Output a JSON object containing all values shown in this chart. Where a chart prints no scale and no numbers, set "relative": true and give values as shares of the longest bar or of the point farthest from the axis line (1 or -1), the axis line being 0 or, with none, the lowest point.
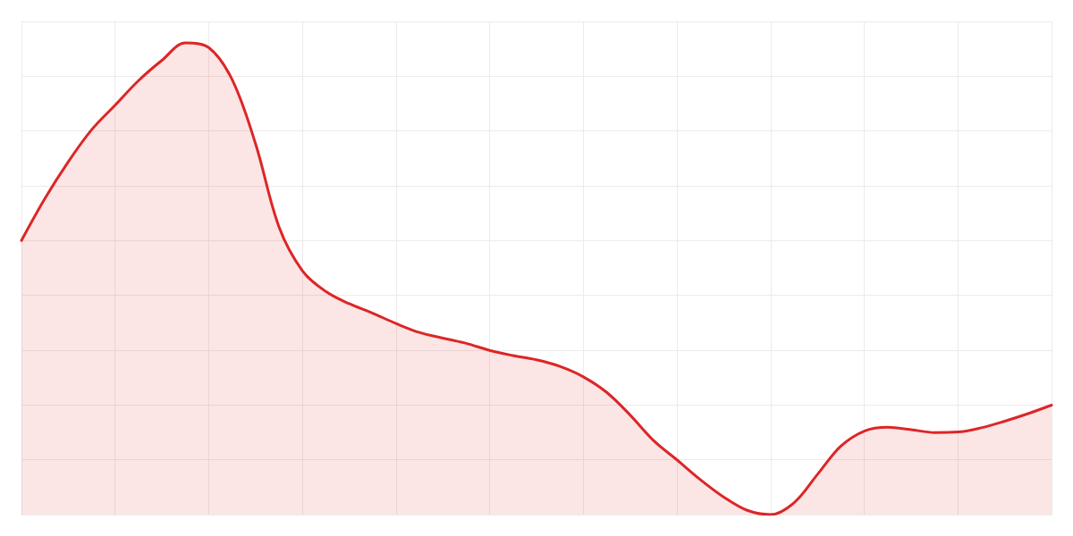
{
  "chart_data": {
    "type": "area",
    "relative": true,
    "grid": true,
    "marker": "none",
    "categories": [
      null,
      null,
      null,
      null,
      null,
      null,
      null,
      null,
      null,
      null,
      null,
      null,
      null,
      null,
      null,
      null,
      null,
      null,
      null,
      null,
      null,
      null,
      null,
      null,
      null,
      null,
      null,
      null,
      null,
      null,
      null,
      null,
      null,
      null,
      null,
      null,
      null,
      null,
      null,
      null,
      null,
      null,
      null,
      null,
      null
    ],
    "series": [
      {
        "color": "#dc2626",
        "values": [
          0.581,
          0.67,
          0.748,
          0.816,
          0.868,
          0.92,
          0.963,
          1,
          0.99,
          0.922,
          0.786,
          0.61,
          0.517,
          0.473,
          0.447,
          0.427,
          0.405,
          0.386,
          0.374,
          0.363,
          0.348,
          0.337,
          0.328,
          0.314,
          0.292,
          0.259,
          0.211,
          0.157,
          0.116,
          0.074,
          0.037,
          0.009,
          0,
          0.025,
          0.085,
          0.145,
          0.177,
          0.185,
          0.18,
          0.174,
          0.175,
          0.184,
          0.198,
          0.214,
          0.232
        ]
      }
    ]
  }
}
